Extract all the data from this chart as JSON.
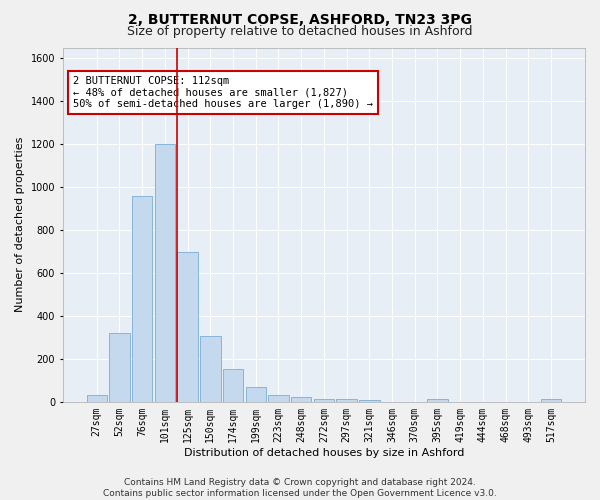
{
  "title_line1": "2, BUTTERNUT COPSE, ASHFORD, TN23 3PG",
  "title_line2": "Size of property relative to detached houses in Ashford",
  "xlabel": "Distribution of detached houses by size in Ashford",
  "ylabel": "Number of detached properties",
  "bar_color": "#c5d9ee",
  "bar_edge_color": "#7aadd4",
  "bar_edge_width": 0.6,
  "categories": [
    "27sqm",
    "52sqm",
    "76sqm",
    "101sqm",
    "125sqm",
    "150sqm",
    "174sqm",
    "199sqm",
    "223sqm",
    "248sqm",
    "272sqm",
    "297sqm",
    "321sqm",
    "346sqm",
    "370sqm",
    "395sqm",
    "419sqm",
    "444sqm",
    "468sqm",
    "493sqm",
    "517sqm"
  ],
  "values": [
    30,
    320,
    960,
    1200,
    700,
    305,
    155,
    70,
    30,
    22,
    15,
    12,
    10,
    0,
    0,
    12,
    0,
    0,
    0,
    0,
    12
  ],
  "ylim": [
    0,
    1650
  ],
  "yticks": [
    0,
    200,
    400,
    600,
    800,
    1000,
    1200,
    1400,
    1600
  ],
  "vline_x": 3.55,
  "vline_color": "#cc0000",
  "annotation_text": "2 BUTTERNUT COPSE: 112sqm\n← 48% of detached houses are smaller (1,827)\n50% of semi-detached houses are larger (1,890) →",
  "annotation_box_facecolor": "#ffffff",
  "annotation_box_edgecolor": "#cc0000",
  "bg_color": "#e8eef5",
  "grid_color": "#ffffff",
  "fig_facecolor": "#f0f0f0",
  "footer_line1": "Contains HM Land Registry data © Crown copyright and database right 2024.",
  "footer_line2": "Contains public sector information licensed under the Open Government Licence v3.0.",
  "title_fontsize": 10,
  "subtitle_fontsize": 9,
  "tick_fontsize": 7,
  "ylabel_fontsize": 8,
  "xlabel_fontsize": 8,
  "annotation_fontsize": 7.5,
  "footer_fontsize": 6.5
}
